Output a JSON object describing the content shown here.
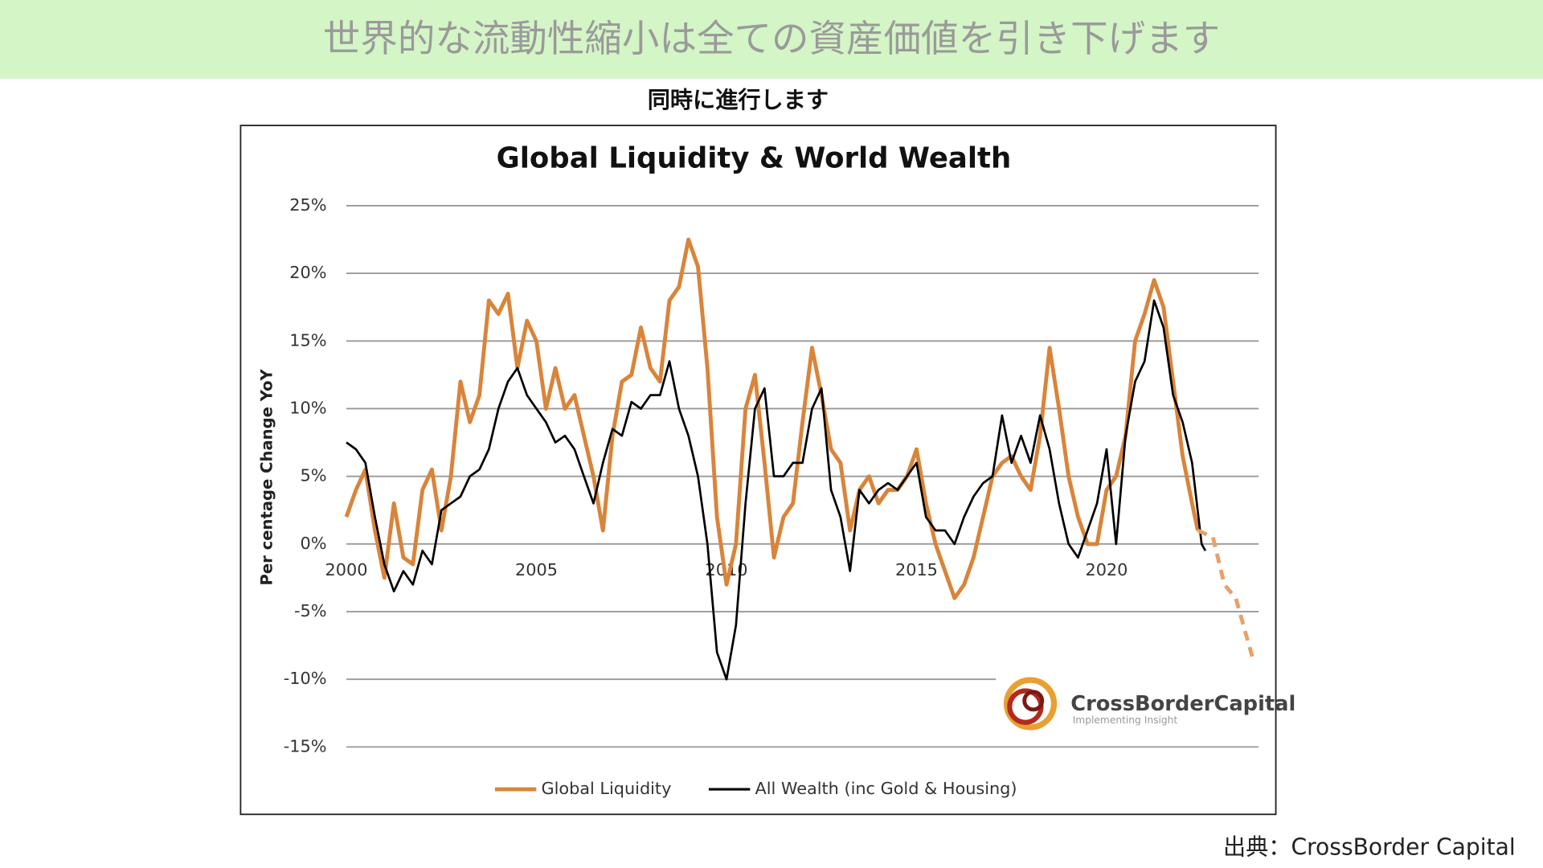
{
  "header": {
    "title": "世界的な流動性縮小は全ての資産価値を引き下げます",
    "subtitle": "同時に進行します"
  },
  "chart_data": {
    "type": "line",
    "title": "Global Liquidity & World Wealth",
    "ylabel": "Per centage Change YoY",
    "xlim": [
      2000,
      2024
    ],
    "xticks": [
      2000,
      2005,
      2010,
      2015,
      2020
    ],
    "ylim": [
      -15,
      25
    ],
    "yticks": [
      {
        "value": -15,
        "label": "-15%"
      },
      {
        "value": -10,
        "label": "-10%"
      },
      {
        "value": -5,
        "label": "-5%"
      },
      {
        "value": 0,
        "label": "0%"
      },
      {
        "value": 5,
        "label": "5%"
      },
      {
        "value": 10,
        "label": "10%"
      },
      {
        "value": 15,
        "label": "15%"
      },
      {
        "value": 20,
        "label": "20%"
      },
      {
        "value": 25,
        "label": "25%"
      }
    ],
    "grid": true,
    "legend": "bottom",
    "series": [
      {
        "name": "Global Liquidity",
        "color": "#d9843a",
        "x": [
          2000,
          2000.25,
          2000.5,
          2000.75,
          2001,
          2001.25,
          2001.5,
          2001.75,
          2002,
          2002.25,
          2002.5,
          2002.75,
          2003,
          2003.25,
          2003.5,
          2003.75,
          2004,
          2004.25,
          2004.5,
          2004.75,
          2005,
          2005.25,
          2005.5,
          2005.75,
          2006,
          2006.25,
          2006.5,
          2006.75,
          2007,
          2007.25,
          2007.5,
          2007.75,
          2008,
          2008.25,
          2008.5,
          2008.75,
          2009,
          2009.25,
          2009.5,
          2009.75,
          2010,
          2010.25,
          2010.5,
          2010.75,
          2011,
          2011.25,
          2011.5,
          2011.75,
          2012,
          2012.25,
          2012.5,
          2012.75,
          2013,
          2013.25,
          2013.5,
          2013.75,
          2014,
          2014.25,
          2014.5,
          2014.75,
          2015,
          2015.25,
          2015.5,
          2015.75,
          2016,
          2016.25,
          2016.5,
          2016.75,
          2017,
          2017.25,
          2017.5,
          2017.75,
          2018,
          2018.25,
          2018.5,
          2018.75,
          2019,
          2019.25,
          2019.5,
          2019.75,
          2020,
          2020.25,
          2020.5,
          2020.75,
          2021,
          2021.25,
          2021.5,
          2021.75,
          2022,
          2022.25,
          2022.4
        ],
        "values": [
          2,
          4,
          5.5,
          1,
          -2.5,
          3,
          -1,
          -1.5,
          4,
          5.5,
          1,
          5,
          12,
          9,
          11,
          18,
          17,
          18.5,
          13,
          16.5,
          15,
          10,
          13,
          10,
          11,
          8,
          5,
          1,
          8,
          12,
          12.5,
          16,
          13,
          12,
          18,
          19,
          22.5,
          20.5,
          13,
          2,
          -3,
          0,
          10,
          12.5,
          6,
          -1,
          2,
          3,
          9,
          14.5,
          11,
          7,
          6,
          1,
          4,
          5,
          3,
          4,
          4,
          5,
          7,
          3,
          0,
          -2,
          -4,
          -3,
          -1,
          2,
          5,
          6,
          6.5,
          5,
          4,
          8,
          14.5,
          10,
          5,
          2,
          0,
          0,
          4,
          5,
          8,
          15,
          17,
          19.5,
          17.5,
          12,
          6.5,
          3,
          1
        ]
      },
      {
        "name": "All Wealth (inc Gold & Housing)",
        "color": "#000000",
        "x": [
          2000,
          2000.25,
          2000.5,
          2000.75,
          2001,
          2001.25,
          2001.5,
          2001.75,
          2002,
          2002.25,
          2002.5,
          2002.75,
          2003,
          2003.25,
          2003.5,
          2003.75,
          2004,
          2004.25,
          2004.5,
          2004.75,
          2005,
          2005.25,
          2005.5,
          2005.75,
          2006,
          2006.25,
          2006.5,
          2006.75,
          2007,
          2007.25,
          2007.5,
          2007.75,
          2008,
          2008.25,
          2008.5,
          2008.75,
          2009,
          2009.25,
          2009.5,
          2009.75,
          2010,
          2010.25,
          2010.5,
          2010.75,
          2011,
          2011.25,
          2011.5,
          2011.75,
          2012,
          2012.25,
          2012.5,
          2012.75,
          2013,
          2013.25,
          2013.5,
          2013.75,
          2014,
          2014.25,
          2014.5,
          2014.75,
          2015,
          2015.25,
          2015.5,
          2015.75,
          2016,
          2016.25,
          2016.5,
          2016.75,
          2017,
          2017.25,
          2017.5,
          2017.75,
          2018,
          2018.25,
          2018.5,
          2018.75,
          2019,
          2019.25,
          2019.5,
          2019.75,
          2020,
          2020.25,
          2020.5,
          2020.75,
          2021,
          2021.25,
          2021.5,
          2021.75,
          2022,
          2022.25,
          2022.5,
          2022.6
        ],
        "values": [
          7.5,
          7,
          6,
          2,
          -1.5,
          -3.5,
          -2,
          -3,
          -0.5,
          -1.5,
          2.5,
          3,
          3.5,
          5,
          5.5,
          7,
          10,
          12,
          13,
          11,
          10,
          9,
          7.5,
          8,
          7,
          5,
          3,
          6,
          8.5,
          8,
          10.5,
          10,
          11,
          11,
          13.5,
          10,
          8,
          5,
          0,
          -8,
          -10,
          -6,
          3,
          10,
          11.5,
          5,
          5,
          6,
          6,
          10,
          11.5,
          4,
          2,
          -2,
          4,
          3,
          4,
          4.5,
          4,
          5,
          6,
          2,
          1,
          1,
          0,
          2,
          3.5,
          4.5,
          5,
          9.5,
          6,
          8,
          6,
          9.5,
          7,
          3,
          0,
          -1,
          1,
          3,
          7,
          0,
          8,
          12,
          13.5,
          18,
          16,
          11,
          9,
          6,
          0,
          -0.5
        ]
      },
      {
        "color": "#e8a06a",
        "dash": true,
        "x": [
          2022.4,
          2022.8,
          2023.1,
          2023.4,
          2023.85
        ],
        "values": [
          1,
          0.5,
          -3,
          -4,
          -8.5
        ]
      }
    ]
  },
  "logo": {
    "name": "CrossBorderCapital",
    "tagline": "Implementing Insight"
  },
  "source": "出典：CrossBorder Capital"
}
